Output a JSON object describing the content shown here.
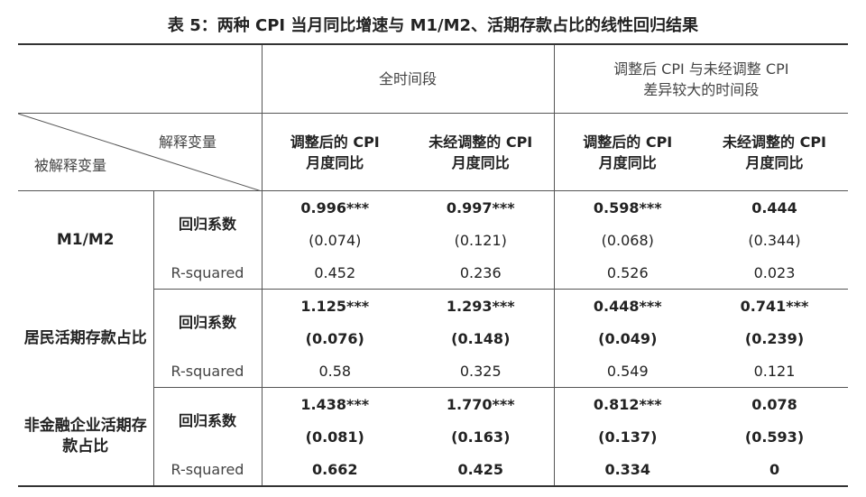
{
  "title": "表 5：两种 CPI 当月同比增速与 M1/M2、活期存款占比的线性回归结果",
  "header": {
    "corner_top": "解释变量",
    "corner_bottom": "被解释变量",
    "periods": [
      [
        "全时间段"
      ],
      [
        "调整后 CPI 与未经调整 CPI",
        "差异较大的时间段"
      ]
    ],
    "columns": [
      [
        "调整后的 CPI",
        "月度同比"
      ],
      [
        "未经调整的 CPI",
        "月度同比"
      ],
      [
        "调整后的 CPI",
        "月度同比"
      ],
      [
        "未经调整的 CPI",
        "月度同比"
      ]
    ]
  },
  "groups": [
    {
      "label": "M1/M2",
      "coef_label": "回归系数",
      "coef": [
        "0.996***",
        "0.997***",
        "0.598***",
        "0.444"
      ],
      "se": [
        "(0.074)",
        "(0.121)",
        "(0.068)",
        "(0.344)"
      ],
      "r2_label": "R-squared",
      "r2": [
        "0.452",
        "0.236",
        "0.526",
        "0.023"
      ]
    },
    {
      "label": "居民活期存款占比",
      "coef_label": "回归系数",
      "coef": [
        "1.125***",
        "1.293***",
        "0.448***",
        "0.741***"
      ],
      "se": [
        "(0.076)",
        "(0.148)",
        "(0.049)",
        "(0.239)"
      ],
      "r2_label": "R-squared",
      "r2": [
        "0.58",
        "0.325",
        "0.549",
        "0.121"
      ]
    },
    {
      "label": "非金融企业活期存款占比",
      "coef_label": "回归系数",
      "coef": [
        "1.438***",
        "1.770***",
        "0.812***",
        "0.078"
      ],
      "se": [
        "(0.081)",
        "(0.163)",
        "(0.137)",
        "(0.593)"
      ],
      "r2_label": "R-squared",
      "r2": [
        "0.662",
        "0.425",
        "0.334",
        "0"
      ]
    }
  ]
}
